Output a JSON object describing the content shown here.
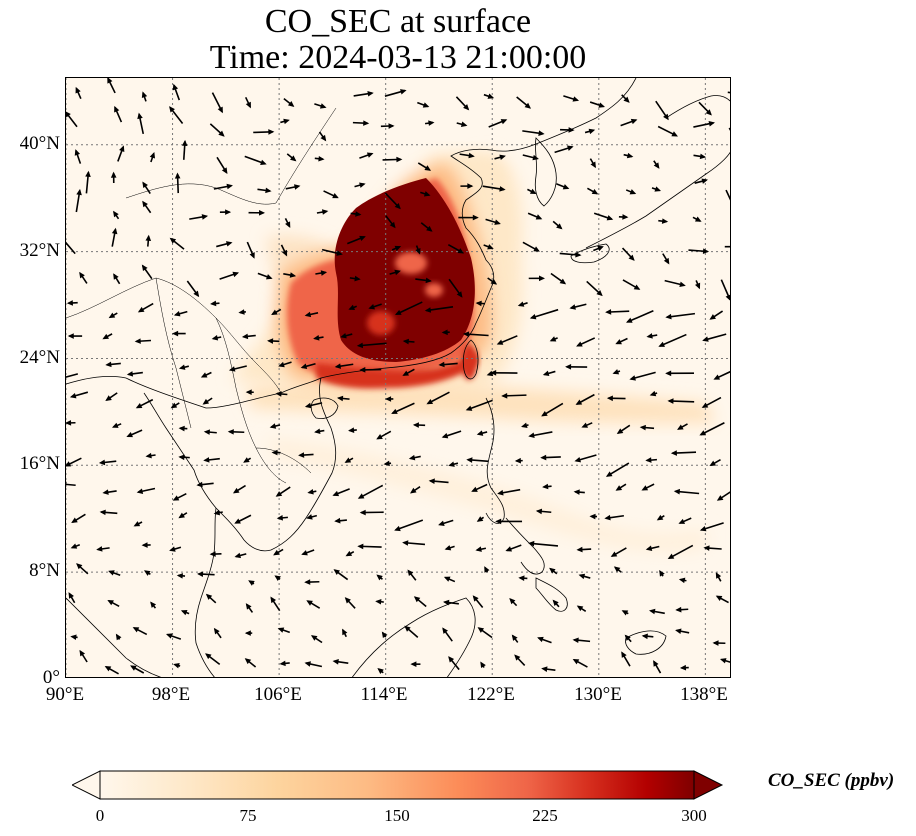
{
  "title": {
    "line1": "CO_SEC at surface",
    "line2": "Time: 2024-03-13 21:00:00"
  },
  "map": {
    "extent_lon": [
      90,
      140
    ],
    "extent_lat": [
      0,
      45
    ],
    "projection": "plate carree",
    "gridlines": "dotted gray",
    "lon_ticks": [
      "90°E",
      "98°E",
      "106°E",
      "114°E",
      "122°E",
      "130°E",
      "138°E"
    ],
    "lat_ticks": [
      "0°",
      "8°N",
      "16°N",
      "24°N",
      "32°N",
      "40°N"
    ],
    "field": "CO_SEC concentration, filled colormap (OrRd)",
    "overlay": "wind vectors (black arrows)",
    "plume_region": "eastern China, highest values ~28–37°N, 108–120°E"
  },
  "colorbar": {
    "label": "CO_SEC (ppbv)",
    "ticks": [
      "0",
      "75",
      "150",
      "225",
      "300"
    ],
    "range": [
      0,
      300
    ],
    "extend": "both",
    "colors": [
      "#fff7ec",
      "#fee8c8",
      "#fdd49e",
      "#fdbb84",
      "#fc8d59",
      "#ef6548",
      "#d7301f",
      "#b30000",
      "#7f0000"
    ]
  }
}
